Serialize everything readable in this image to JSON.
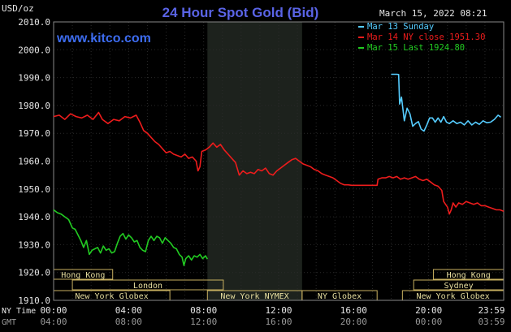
{
  "chart_data": {
    "type": "line",
    "title": "24 Hour Spot Gold (Bid)",
    "website": "www.kitco.com",
    "timestamp": "March 15, 2022 08:21",
    "y_unit": "USD/oz",
    "ylim": [
      1910,
      2010
    ],
    "y_ticks": [
      "2010.0",
      "2000.0",
      "1990.0",
      "1980.0",
      "1970.0",
      "1960.0",
      "1950.0",
      "1940.0",
      "1930.0",
      "1920.0",
      "1910.0"
    ],
    "x_tick_labels_ny": [
      "00:00",
      "04:00",
      "08:00",
      "12:00",
      "16:00",
      "20:00",
      "23:59"
    ],
    "x_tick_labels_gmt": [
      "04:00",
      "08:00",
      "12:00",
      "16:00",
      "20:00",
      "00:00",
      "03:59"
    ],
    "x_row_labels": [
      "NY Time",
      "GMT"
    ],
    "legend": [
      {
        "label": "Mar 13 Sunday",
        "color": "#55ccff"
      },
      {
        "label": "Mar 14 NY close 1951.30",
        "color": "#ee1c1c"
      },
      {
        "label": "Mar 15 Last 1924.80",
        "color": "#22cc22"
      }
    ],
    "markets": [
      {
        "label": "Hong Kong",
        "row": 0,
        "start": 0,
        "end": 3.15
      },
      {
        "label": "Hong Kong",
        "row": 0,
        "start": 20.25,
        "end": 24
      },
      {
        "label": "London",
        "row": 1,
        "start": 1.0,
        "end": 9.05
      },
      {
        "label": "Sydney",
        "row": 1,
        "start": 19.2,
        "end": 24
      },
      {
        "label": "New York Globex",
        "row": 2,
        "start": 0,
        "end": 6.2
      },
      {
        "label": "New York NYMEX",
        "row": 2,
        "start": 8.2,
        "end": 13.25
      },
      {
        "label": "NY Globex",
        "row": 2,
        "start": 13.25,
        "end": 17.25
      },
      {
        "label": "New York Globex",
        "row": 2,
        "start": 18.6,
        "end": 24
      }
    ],
    "shaded_period": [
      8.2,
      13.25
    ],
    "series": [
      {
        "name": "Mar 13 Sunday",
        "color": "#55ccff",
        "points": [
          [
            18.0,
            1991.2
          ],
          [
            18.3,
            1991.2
          ],
          [
            18.4,
            1991.1
          ],
          [
            18.45,
            1980.5
          ],
          [
            18.55,
            1983.0
          ],
          [
            18.7,
            1974.5
          ],
          [
            18.85,
            1979.0
          ],
          [
            19.0,
            1977.0
          ],
          [
            19.15,
            1972.5
          ],
          [
            19.3,
            1973.5
          ],
          [
            19.45,
            1974.2
          ],
          [
            19.6,
            1971.5
          ],
          [
            19.75,
            1970.8
          ],
          [
            19.9,
            1973.0
          ],
          [
            20.05,
            1975.5
          ],
          [
            20.2,
            1975.5
          ],
          [
            20.35,
            1974.0
          ],
          [
            20.5,
            1975.5
          ],
          [
            20.65,
            1974.0
          ],
          [
            20.8,
            1976.0
          ],
          [
            20.95,
            1974.0
          ],
          [
            21.1,
            1973.5
          ],
          [
            21.3,
            1974.5
          ],
          [
            21.5,
            1973.5
          ],
          [
            21.7,
            1974.0
          ],
          [
            21.9,
            1973.0
          ],
          [
            22.1,
            1974.5
          ],
          [
            22.3,
            1973.0
          ],
          [
            22.5,
            1974.0
          ],
          [
            22.7,
            1973.2
          ],
          [
            22.9,
            1974.5
          ],
          [
            23.1,
            1973.8
          ],
          [
            23.3,
            1974.0
          ],
          [
            23.5,
            1975.0
          ],
          [
            23.7,
            1976.5
          ],
          [
            23.85,
            1975.8
          ]
        ]
      },
      {
        "name": "Mar 14 NY close 1951.30",
        "color": "#ee1c1c",
        "points": [
          [
            0.0,
            1976.0
          ],
          [
            0.3,
            1976.5
          ],
          [
            0.6,
            1975.0
          ],
          [
            0.9,
            1977.0
          ],
          [
            1.2,
            1976.0
          ],
          [
            1.5,
            1975.5
          ],
          [
            1.8,
            1976.5
          ],
          [
            2.1,
            1975.0
          ],
          [
            2.4,
            1977.5
          ],
          [
            2.6,
            1975.0
          ],
          [
            2.9,
            1973.5
          ],
          [
            3.2,
            1975.0
          ],
          [
            3.5,
            1974.5
          ],
          [
            3.8,
            1976.0
          ],
          [
            4.1,
            1975.5
          ],
          [
            4.4,
            1976.5
          ],
          [
            4.6,
            1974.0
          ],
          [
            4.8,
            1971.0
          ],
          [
            5.0,
            1970.0
          ],
          [
            5.2,
            1968.5
          ],
          [
            5.4,
            1967.0
          ],
          [
            5.6,
            1966.0
          ],
          [
            5.8,
            1964.5
          ],
          [
            6.0,
            1963.0
          ],
          [
            6.2,
            1963.5
          ],
          [
            6.4,
            1962.5
          ],
          [
            6.6,
            1962.0
          ],
          [
            6.8,
            1961.5
          ],
          [
            7.0,
            1962.5
          ],
          [
            7.2,
            1961.0
          ],
          [
            7.4,
            1961.5
          ],
          [
            7.6,
            1960.0
          ],
          [
            7.7,
            1956.5
          ],
          [
            7.8,
            1958.0
          ],
          [
            7.9,
            1963.5
          ],
          [
            8.1,
            1964.0
          ],
          [
            8.3,
            1965.0
          ],
          [
            8.5,
            1966.5
          ],
          [
            8.7,
            1965.0
          ],
          [
            8.9,
            1966.0
          ],
          [
            9.1,
            1964.0
          ],
          [
            9.3,
            1962.5
          ],
          [
            9.5,
            1961.0
          ],
          [
            9.7,
            1959.5
          ],
          [
            9.9,
            1955.0
          ],
          [
            10.1,
            1956.5
          ],
          [
            10.3,
            1955.5
          ],
          [
            10.5,
            1956.0
          ],
          [
            10.7,
            1955.5
          ],
          [
            10.9,
            1957.0
          ],
          [
            11.1,
            1956.5
          ],
          [
            11.3,
            1957.5
          ],
          [
            11.5,
            1955.5
          ],
          [
            11.7,
            1955.0
          ],
          [
            11.9,
            1956.5
          ],
          [
            12.1,
            1957.5
          ],
          [
            12.3,
            1958.5
          ],
          [
            12.5,
            1959.5
          ],
          [
            12.7,
            1960.5
          ],
          [
            12.9,
            1961.0
          ],
          [
            13.1,
            1960.0
          ],
          [
            13.3,
            1959.0
          ],
          [
            13.5,
            1958.5
          ],
          [
            13.7,
            1958.0
          ],
          [
            13.9,
            1957.0
          ],
          [
            14.1,
            1956.5
          ],
          [
            14.3,
            1955.5
          ],
          [
            14.5,
            1955.0
          ],
          [
            14.7,
            1954.5
          ],
          [
            14.9,
            1954.0
          ],
          [
            15.1,
            1953.0
          ],
          [
            15.3,
            1952.0
          ],
          [
            15.5,
            1951.5
          ],
          [
            15.7,
            1951.5
          ],
          [
            15.9,
            1951.3
          ],
          [
            16.1,
            1951.3
          ],
          [
            16.5,
            1951.3
          ],
          [
            16.9,
            1951.3
          ],
          [
            17.25,
            1951.3
          ],
          [
            17.3,
            1953.5
          ],
          [
            17.5,
            1954.0
          ],
          [
            17.7,
            1954.0
          ],
          [
            17.9,
            1954.5
          ],
          [
            18.1,
            1954.0
          ],
          [
            18.3,
            1954.5
          ],
          [
            18.5,
            1953.5
          ],
          [
            18.7,
            1954.0
          ],
          [
            18.9,
            1953.5
          ],
          [
            19.1,
            1954.0
          ],
          [
            19.3,
            1954.5
          ],
          [
            19.5,
            1953.5
          ],
          [
            19.7,
            1953.0
          ],
          [
            19.9,
            1953.5
          ],
          [
            20.1,
            1952.5
          ],
          [
            20.3,
            1951.5
          ],
          [
            20.5,
            1951.0
          ],
          [
            20.7,
            1949.5
          ],
          [
            20.8,
            1945.5
          ],
          [
            20.9,
            1944.5
          ],
          [
            21.0,
            1943.5
          ],
          [
            21.1,
            1941.0
          ],
          [
            21.2,
            1942.5
          ],
          [
            21.3,
            1945.0
          ],
          [
            21.45,
            1943.5
          ],
          [
            21.6,
            1945.0
          ],
          [
            21.8,
            1944.5
          ],
          [
            22.0,
            1945.5
          ],
          [
            22.2,
            1945.0
          ],
          [
            22.4,
            1944.5
          ],
          [
            22.6,
            1945.0
          ],
          [
            22.8,
            1944.0
          ],
          [
            23.0,
            1944.0
          ],
          [
            23.2,
            1943.5
          ],
          [
            23.4,
            1943.0
          ],
          [
            23.6,
            1942.5
          ],
          [
            23.8,
            1942.5
          ],
          [
            24.0,
            1942.0
          ]
        ]
      },
      {
        "name": "Mar 15 Last 1924.80",
        "color": "#22cc22",
        "points": [
          [
            0.0,
            1942.5
          ],
          [
            0.2,
            1941.5
          ],
          [
            0.4,
            1941.0
          ],
          [
            0.6,
            1940.0
          ],
          [
            0.8,
            1939.0
          ],
          [
            1.0,
            1936.0
          ],
          [
            1.15,
            1935.5
          ],
          [
            1.3,
            1933.5
          ],
          [
            1.45,
            1931.5
          ],
          [
            1.6,
            1929.0
          ],
          [
            1.75,
            1931.5
          ],
          [
            1.9,
            1926.5
          ],
          [
            2.05,
            1928.0
          ],
          [
            2.2,
            1928.5
          ],
          [
            2.35,
            1929.0
          ],
          [
            2.5,
            1927.0
          ],
          [
            2.65,
            1929.5
          ],
          [
            2.8,
            1928.0
          ],
          [
            2.95,
            1928.5
          ],
          [
            3.1,
            1927.0
          ],
          [
            3.25,
            1927.5
          ],
          [
            3.4,
            1930.5
          ],
          [
            3.55,
            1933.0
          ],
          [
            3.7,
            1934.0
          ],
          [
            3.85,
            1932.0
          ],
          [
            4.0,
            1933.5
          ],
          [
            4.15,
            1932.5
          ],
          [
            4.3,
            1931.0
          ],
          [
            4.45,
            1931.5
          ],
          [
            4.6,
            1929.0
          ],
          [
            4.75,
            1928.0
          ],
          [
            4.9,
            1927.5
          ],
          [
            5.05,
            1931.5
          ],
          [
            5.2,
            1933.0
          ],
          [
            5.35,
            1931.5
          ],
          [
            5.5,
            1933.0
          ],
          [
            5.65,
            1932.5
          ],
          [
            5.8,
            1930.5
          ],
          [
            5.95,
            1932.5
          ],
          [
            6.1,
            1931.5
          ],
          [
            6.25,
            1930.5
          ],
          [
            6.4,
            1929.0
          ],
          [
            6.55,
            1928.5
          ],
          [
            6.7,
            1926.5
          ],
          [
            6.85,
            1925.5
          ],
          [
            6.95,
            1922.5
          ],
          [
            7.05,
            1925.0
          ],
          [
            7.2,
            1926.0
          ],
          [
            7.35,
            1924.5
          ],
          [
            7.5,
            1926.0
          ],
          [
            7.65,
            1925.5
          ],
          [
            7.8,
            1926.5
          ],
          [
            7.95,
            1925.0
          ],
          [
            8.1,
            1926.0
          ],
          [
            8.2,
            1924.8
          ]
        ]
      }
    ]
  }
}
